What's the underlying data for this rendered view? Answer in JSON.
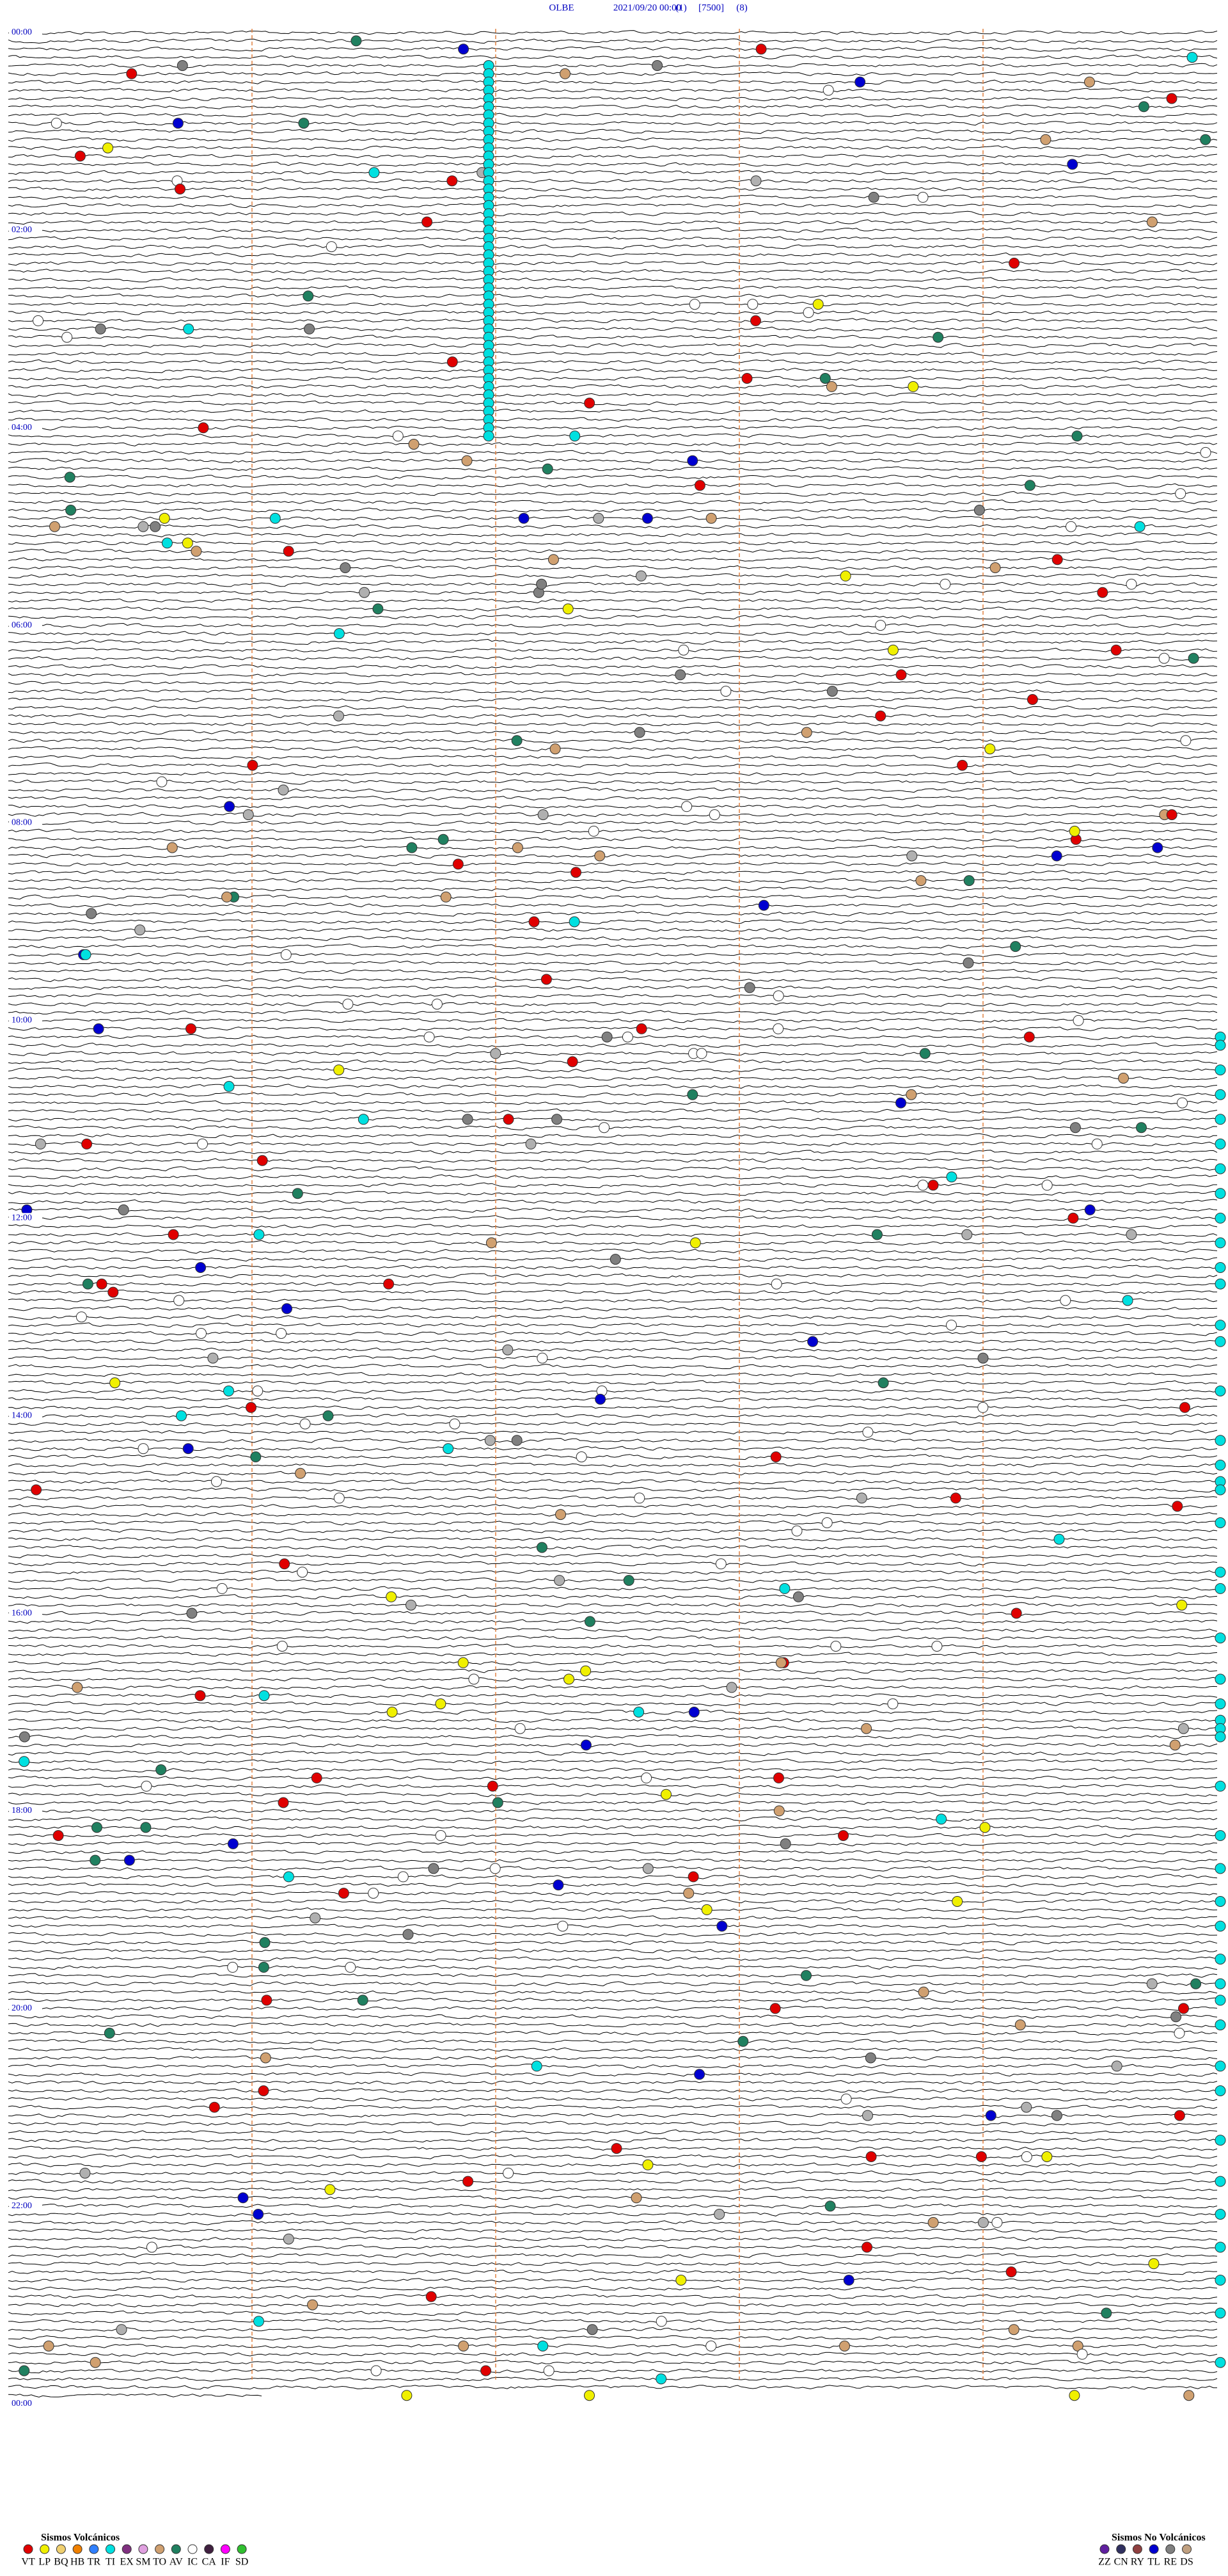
{
  "header": {
    "station": "OLBE",
    "datetime": "2021/09/20 00:00",
    "channel": "(1)",
    "scale": "[7500]",
    "filter": "(8)"
  },
  "time_labels": [
    "00:00",
    "02:00",
    "04:00",
    "06:00",
    "08:00",
    "10:00",
    "12:00",
    "14:00",
    "16:00",
    "18:00",
    "20:00",
    "22:00",
    "00:00"
  ],
  "legend": {
    "volcanic": {
      "title": "Sismos Volcánicos",
      "items": [
        {
          "label": "VT",
          "color": "#e00000"
        },
        {
          "label": "LP",
          "color": "#f0f000"
        },
        {
          "label": "BQ",
          "color": "#f0d070"
        },
        {
          "label": "HB",
          "color": "#f08000"
        },
        {
          "label": "TR",
          "color": "#3080ff"
        },
        {
          "label": "TI",
          "color": "#00e0e0"
        },
        {
          "label": "EX",
          "color": "#803080"
        },
        {
          "label": "SM",
          "color": "#e0a0e0"
        },
        {
          "label": "TO",
          "color": "#d0a070"
        },
        {
          "label": "AV",
          "color": "#208060"
        },
        {
          "label": "IC",
          "color": "#ffffff"
        },
        {
          "label": "CA",
          "color": "#402040"
        },
        {
          "label": "IF",
          "color": "#ff00ff"
        },
        {
          "label": "SD",
          "color": "#30c030"
        }
      ]
    },
    "non_volcanic": {
      "title": "Sismos No Volcánicos",
      "items": [
        {
          "label": "ZZ",
          "color": "#6020a0"
        },
        {
          "label": "CN",
          "color": "#303060"
        },
        {
          "label": "RY",
          "color": "#904040"
        },
        {
          "label": "TL",
          "color": "#0000d0"
        },
        {
          "label": "RE",
          "color": "#808080"
        },
        {
          "label": "DS",
          "color": "#c0a080"
        }
      ]
    }
  }
}
